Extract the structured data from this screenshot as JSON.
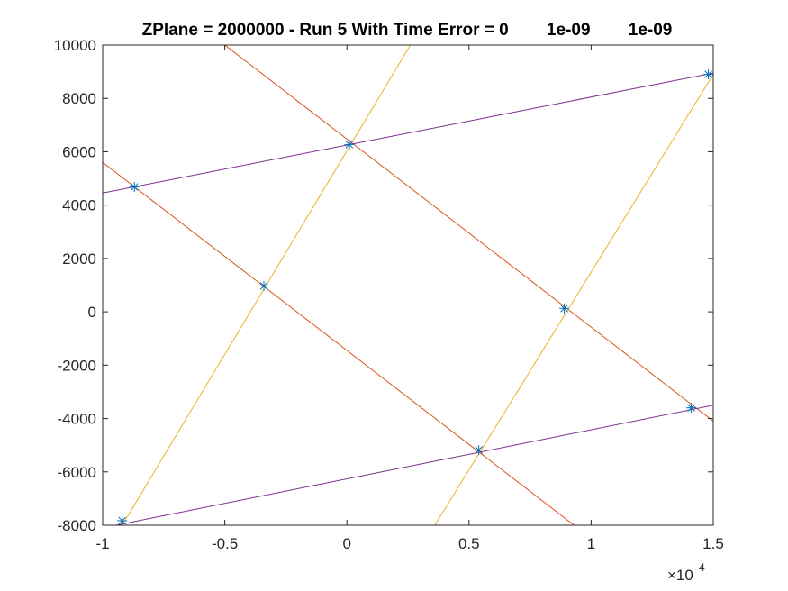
{
  "chart_data": {
    "type": "line",
    "title": "ZPlane = 2000000 - Run 5 With Time Error = 0        1e-09        1e-09",
    "xlabel": "",
    "ylabel": "",
    "xlim": [
      -10000,
      15000
    ],
    "ylim": [
      -8000,
      10000
    ],
    "x_exponent_label": "×10",
    "x_exponent_power": "4",
    "x_ticks": [
      {
        "value": -10000,
        "label": "-1"
      },
      {
        "value": -5000,
        "label": "-0.5"
      },
      {
        "value": 0,
        "label": "0"
      },
      {
        "value": 5000,
        "label": "0.5"
      },
      {
        "value": 10000,
        "label": "1"
      },
      {
        "value": 15000,
        "label": "1.5"
      }
    ],
    "y_ticks": [
      {
        "value": -8000,
        "label": "-8000"
      },
      {
        "value": -6000,
        "label": "-6000"
      },
      {
        "value": -4000,
        "label": "-4000"
      },
      {
        "value": -2000,
        "label": "-2000"
      },
      {
        "value": 0,
        "label": "0"
      },
      {
        "value": 2000,
        "label": "2000"
      },
      {
        "value": 4000,
        "label": "4000"
      },
      {
        "value": 6000,
        "label": "6000"
      },
      {
        "value": 8000,
        "label": "8000"
      },
      {
        "value": 10000,
        "label": "10000"
      }
    ],
    "grid": false,
    "legend": "none",
    "colors": {
      "red_lines": "#D95319",
      "yellow_lines": "#EDB120",
      "purple_lines": "#7E2F8E",
      "markers": "#0072BD",
      "axes": "#262626"
    },
    "lines": [
      {
        "group": "red",
        "points": [
          [
            -10000,
            5600
          ],
          [
            9300,
            -8000
          ]
        ]
      },
      {
        "group": "red",
        "points": [
          [
            -5000,
            10000
          ],
          [
            15000,
            -4100
          ]
        ]
      },
      {
        "group": "yellow",
        "points": [
          [
            -9200,
            -8000
          ],
          [
            2600,
            10000
          ]
        ]
      },
      {
        "group": "yellow",
        "points": [
          [
            3600,
            -8000
          ],
          [
            15000,
            8900
          ]
        ]
      },
      {
        "group": "purple",
        "points": [
          [
            -10000,
            4450
          ],
          [
            15000,
            8950
          ]
        ]
      },
      {
        "group": "purple",
        "points": [
          [
            -10000,
            -8100
          ],
          [
            15000,
            -3500
          ]
        ]
      }
    ],
    "markers": [
      {
        "x": -8700,
        "y": 4680
      },
      {
        "x": 100,
        "y": 6270
      },
      {
        "x": 14800,
        "y": 8900
      },
      {
        "x": -3400,
        "y": 970
      },
      {
        "x": 8900,
        "y": 130
      },
      {
        "x": 5400,
        "y": -5180
      },
      {
        "x": 14100,
        "y": -3600
      },
      {
        "x": -9200,
        "y": -7830
      }
    ]
  }
}
